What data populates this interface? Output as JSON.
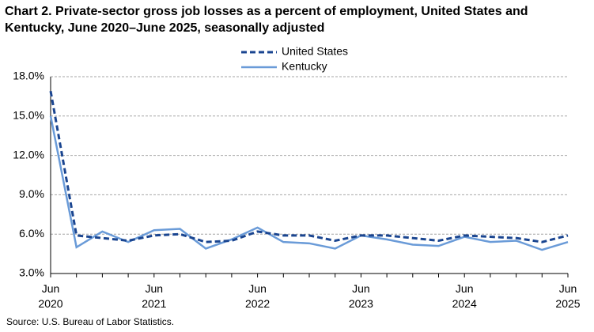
{
  "chart_data": {
    "type": "line",
    "title": "Chart 2. Private-sector gross job losses as a percent of employment, United States and Kentucky, June 2020–June 2025, seasonally adjusted",
    "categories": [
      "Jun 2020",
      null,
      null,
      null,
      "Jun 2021",
      null,
      null,
      null,
      "Jun 2022",
      null,
      null,
      null,
      "Jun 2023",
      null,
      null,
      null,
      "Jun 2024",
      null,
      null,
      null,
      "Jun 2025"
    ],
    "series": [
      {
        "name": "United States",
        "color": "#1a4590",
        "dashed": true,
        "values": [
          16.9,
          5.9,
          5.7,
          5.5,
          5.9,
          6.0,
          5.4,
          5.5,
          6.2,
          5.9,
          5.9,
          5.5,
          5.9,
          5.9,
          5.7,
          5.5,
          5.9,
          5.8,
          5.7,
          5.4,
          5.9
        ]
      },
      {
        "name": "Kentucky",
        "color": "#6a9bd8",
        "dashed": false,
        "values": [
          15.0,
          5.0,
          6.2,
          5.4,
          6.3,
          6.4,
          4.9,
          5.6,
          6.5,
          5.4,
          5.3,
          4.9,
          5.9,
          5.6,
          5.2,
          5.1,
          5.8,
          5.4,
          5.5,
          4.8,
          5.4
        ]
      }
    ],
    "ylim": [
      3,
      18
    ],
    "yticks": [
      {
        "value": 3,
        "label": "3.0%"
      },
      {
        "value": 6,
        "label": "6.0%"
      },
      {
        "value": 9,
        "label": "9.0%"
      },
      {
        "value": 12,
        "label": "12.0%"
      },
      {
        "value": 15,
        "label": "15.0%"
      },
      {
        "value": 18,
        "label": "18.0%"
      }
    ],
    "grid": true,
    "legend": "top",
    "source": "Source: U.S. Bureau of Labor Statistics."
  }
}
